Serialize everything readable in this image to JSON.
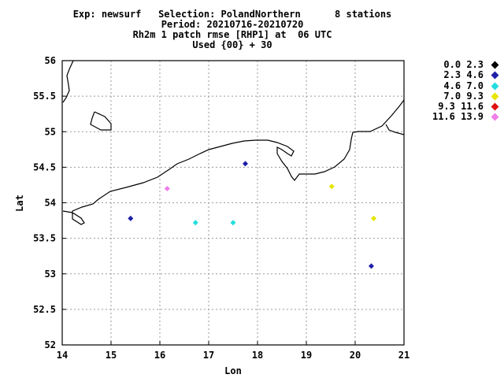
{
  "header": {
    "line1": "Exp: newsurf   Selection: PolandNorthern      8 stations",
    "line2": "Period: 20210716-20210720",
    "line3": "Rh2m 1 patch rmse [RHP1] at  06 UTC",
    "line4": "Used {00} + 30"
  },
  "chart_data": {
    "type": "scatter",
    "xlabel": "Lon",
    "ylabel": "Lat",
    "xlim": [
      14,
      21
    ],
    "ylim": [
      52,
      56
    ],
    "x_ticks": [
      "14",
      "15",
      "16",
      "17",
      "18",
      "19",
      "20",
      "21"
    ],
    "y_ticks": [
      "52",
      "52.5",
      "53",
      "53.5",
      "54",
      "54.5",
      "55",
      "55.5",
      "56"
    ],
    "grid": true,
    "legend_placement": "right",
    "legend": [
      {
        "label": "0.0 2.3",
        "color": "#000000"
      },
      {
        "label": "2.3 4.6",
        "color": "#1f1fa8"
      },
      {
        "label": "4.6 7.0",
        "color": "#22dede"
      },
      {
        "label": "7.0 9.3",
        "color": "#e6e600"
      },
      {
        "label": "9.3 11.6",
        "color": "#e01010"
      },
      {
        "label": "11.6 13.9",
        "color": "#f07ee6"
      }
    ],
    "points": [
      {
        "lon": 15.4,
        "lat": 53.78,
        "bin": 1
      },
      {
        "lon": 16.15,
        "lat": 54.2,
        "bin": 5
      },
      {
        "lon": 16.73,
        "lat": 53.72,
        "bin": 2
      },
      {
        "lon": 17.5,
        "lat": 53.72,
        "bin": 2
      },
      {
        "lon": 17.75,
        "lat": 54.55,
        "bin": 1
      },
      {
        "lon": 19.52,
        "lat": 54.23,
        "bin": 3
      },
      {
        "lon": 20.38,
        "lat": 53.78,
        "bin": 3
      },
      {
        "lon": 20.33,
        "lat": 53.11,
        "bin": 1
      }
    ]
  }
}
